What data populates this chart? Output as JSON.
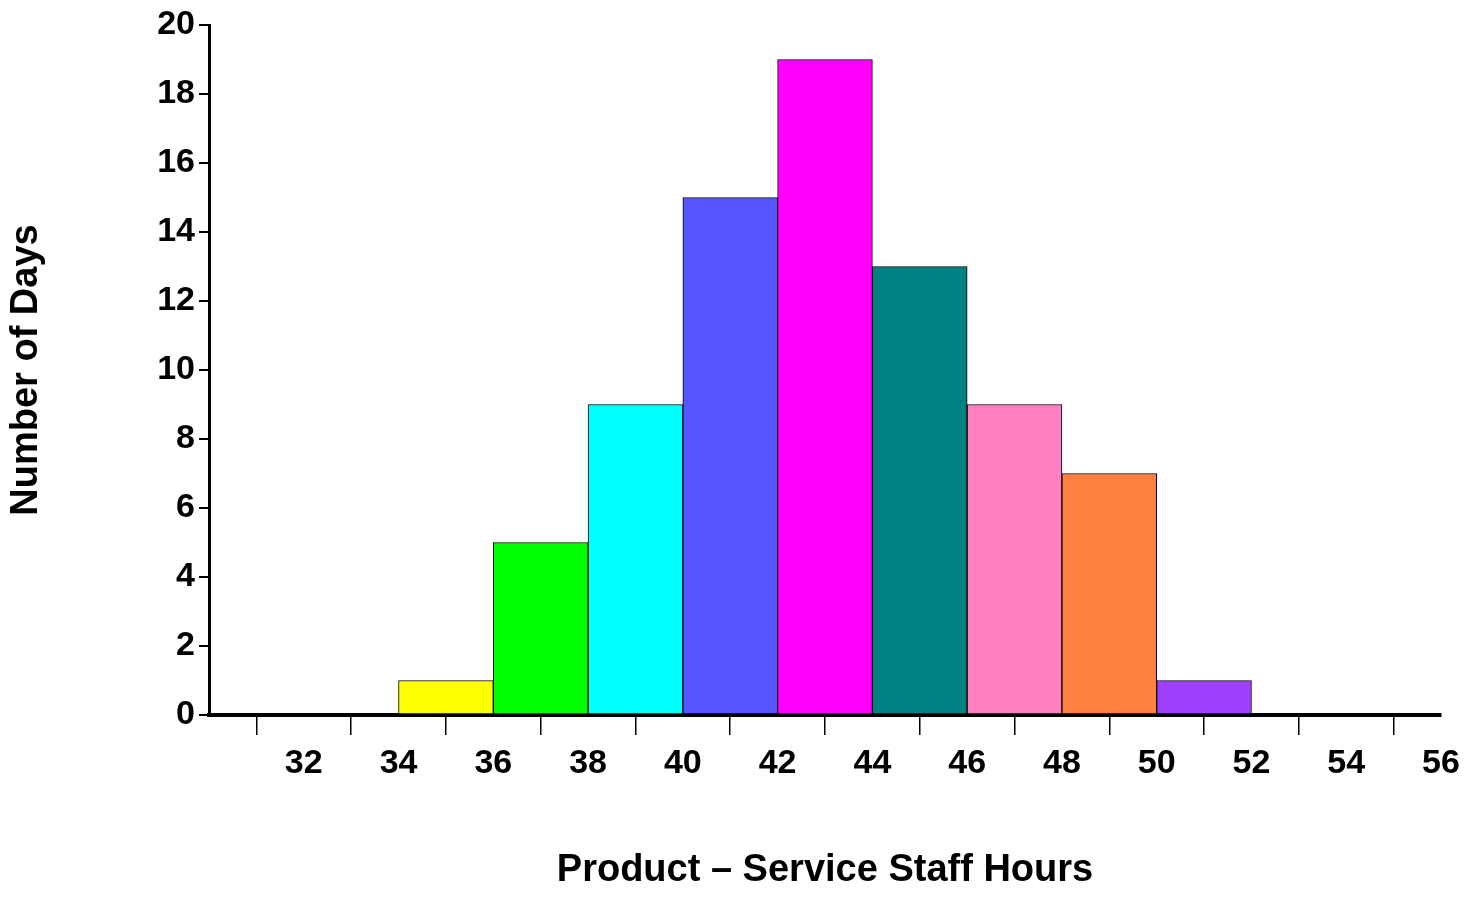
{
  "chart_data": {
    "type": "histogram",
    "xlabel": "Product – Service Staff Hours",
    "ylabel": "Number of Days",
    "bins": [
      34,
      36,
      38,
      40,
      42,
      44,
      46,
      48,
      50,
      52
    ],
    "values": [
      1,
      5,
      9,
      15,
      19,
      13,
      9,
      7,
      1
    ],
    "colors": [
      "#ffff00",
      "#00ff00",
      "#00ffff",
      "#5555ff",
      "#ff00ff",
      "#008080",
      "#ff80c0",
      "#ff8040",
      "#a040ff"
    ],
    "xlim": [
      30,
      56
    ],
    "xticks": [
      {
        "value": 30,
        "label": null
      },
      32,
      34,
      36,
      38,
      40,
      42,
      44,
      46,
      48,
      50,
      52,
      54,
      56
    ],
    "ylim": [
      0,
      20
    ],
    "yticks": [
      0,
      2,
      4,
      6,
      8,
      10,
      12,
      14,
      16,
      18,
      20
    ],
    "grid": false,
    "legend": false
  }
}
